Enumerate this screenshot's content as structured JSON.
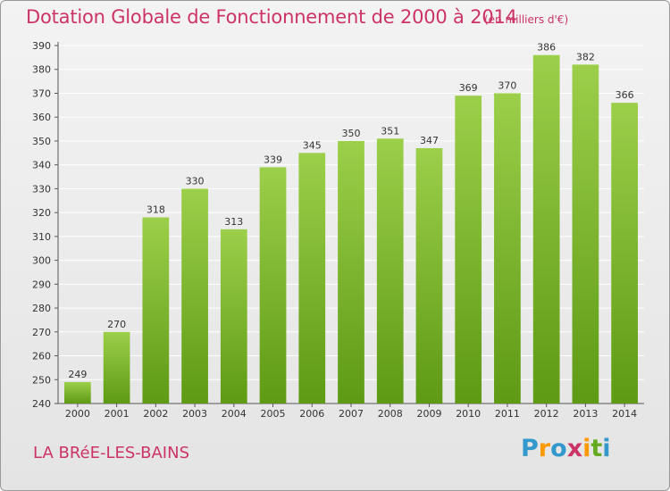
{
  "header": {
    "title": "Dotation Globale de Fonctionnement de 2000 à 2014",
    "unit": "(en milliers d'€)"
  },
  "footer": {
    "place": "LA BRéE-LES-BAINS",
    "logo_letters": [
      "P",
      "r",
      "o",
      "x",
      "i",
      "t",
      "i"
    ],
    "logo_colors": [
      "#3399cc",
      "#ff9900",
      "#3399cc",
      "#cc3366",
      "#ff9900",
      "#66aa22",
      "#3399cc"
    ]
  },
  "colors": {
    "bar_top": "#9ccf4a",
    "bar_bottom": "#5e9a14",
    "grid": "#ffffff",
    "axis_text": "#333333"
  },
  "chart_data": {
    "type": "bar",
    "title": "Dotation Globale de Fonctionnement de 2000 à 2014",
    "categories": [
      "2000",
      "2001",
      "2002",
      "2003",
      "2004",
      "2005",
      "2006",
      "2007",
      "2008",
      "2009",
      "2010",
      "2011",
      "2012",
      "2013",
      "2014"
    ],
    "values": [
      249,
      270,
      318,
      330,
      313,
      339,
      345,
      350,
      351,
      347,
      369,
      370,
      386,
      382,
      366
    ],
    "ylim": [
      240,
      390
    ],
    "yticks": [
      240,
      250,
      260,
      270,
      280,
      290,
      300,
      310,
      320,
      330,
      340,
      350,
      360,
      370,
      380,
      390
    ],
    "grid": true
  }
}
